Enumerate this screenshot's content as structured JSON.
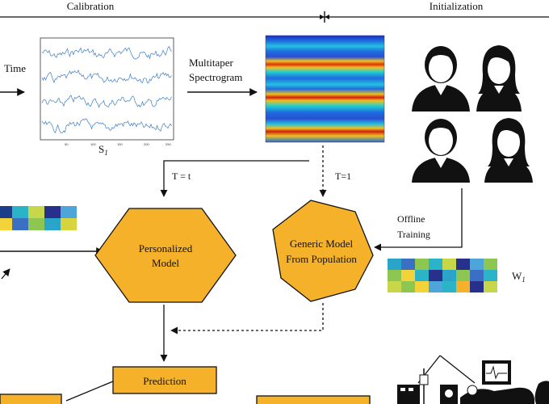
{
  "header": {
    "calibration": "Calibration",
    "initialization": "Initialization"
  },
  "time_label": {
    "line1": "Time"
  },
  "signal": {
    "caption": "S",
    "caption_sub": "1"
  },
  "spectrogram_label": {
    "line1": "Multitaper",
    "line2": "Spectrogram"
  },
  "edges": {
    "t_eq_t": "T = t",
    "t_eq_1": "T=1",
    "offline1": "Offline",
    "offline2": "Training"
  },
  "nodes": {
    "personalized1": "Personalized",
    "personalized2": "Model",
    "generic1": "Generic Model",
    "generic2": "From Population",
    "prediction": "Prediction"
  },
  "weights": {
    "label": "W",
    "label_sub": "1"
  },
  "colors": {
    "node_fill": "#f5b12a",
    "node_stroke": "#111111",
    "signal": "#3a7dc8"
  }
}
